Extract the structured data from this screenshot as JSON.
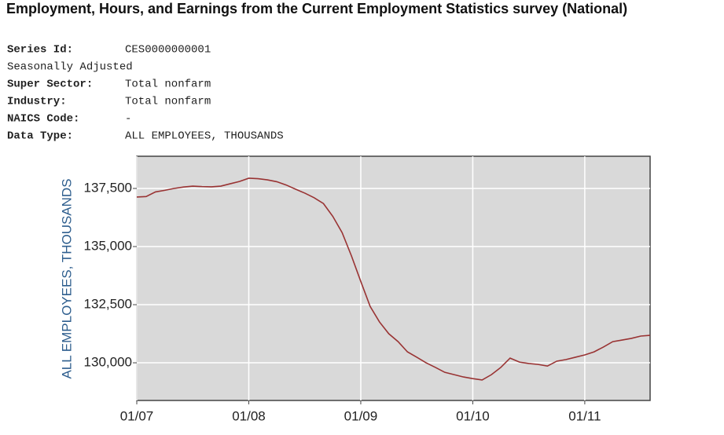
{
  "page_title": "Employment, Hours, and Earnings from the Current Employment Statistics survey (National)",
  "series_info": [
    {
      "label": "Series Id:",
      "value": "CES0000000001"
    },
    {
      "label": "Seasonally Adjusted"
    },
    {
      "label": "Super Sector:",
      "value": "Total nonfarm"
    },
    {
      "label": "Industry:",
      "value": "Total nonfarm"
    },
    {
      "label": "NAICS Code:",
      "value": "-"
    },
    {
      "label": "Data Type:",
      "value": "ALL EMPLOYEES, THOUSANDS"
    }
  ],
  "chart_data": {
    "type": "line",
    "y_label": "ALL EMPLOYEES, THOUSANDS",
    "x": [
      "01/07",
      "02/07",
      "03/07",
      "04/07",
      "05/07",
      "06/07",
      "07/07",
      "08/07",
      "09/07",
      "10/07",
      "11/07",
      "12/07",
      "01/08",
      "02/08",
      "03/08",
      "04/08",
      "05/08",
      "06/08",
      "07/08",
      "08/08",
      "09/08",
      "10/08",
      "11/08",
      "12/08",
      "01/09",
      "02/09",
      "03/09",
      "04/09",
      "05/09",
      "06/09",
      "07/09",
      "08/09",
      "09/09",
      "10/09",
      "11/09",
      "12/09",
      "01/10",
      "02/10",
      "03/10",
      "04/10",
      "05/10",
      "06/10",
      "07/10",
      "08/10",
      "09/10",
      "10/10",
      "11/10",
      "12/10",
      "01/11",
      "02/11",
      "03/11",
      "04/11",
      "05/11",
      "06/11",
      "07/11",
      "08/11"
    ],
    "series": [
      {
        "name": "Total nonfarm",
        "color": "#993333",
        "values": [
          137130,
          137150,
          137350,
          137420,
          137500,
          137560,
          137600,
          137580,
          137570,
          137600,
          137700,
          137800,
          137940,
          137920,
          137870,
          137790,
          137650,
          137470,
          137300,
          137100,
          136850,
          136300,
          135600,
          134600,
          133500,
          132430,
          131760,
          131250,
          130910,
          130470,
          130240,
          130000,
          129800,
          129590,
          129490,
          129390,
          129320,
          129260,
          129490,
          129800,
          130200,
          130030,
          129970,
          129930,
          129860,
          130070,
          130140,
          130240,
          130340,
          130470,
          130680,
          130910,
          130980,
          131050,
          131150,
          131180
        ]
      }
    ],
    "ylim": [
      128380,
      138885
    ],
    "yticks": [
      {
        "value": 130000,
        "label": "130,000"
      },
      {
        "value": 132500,
        "label": "132,500"
      },
      {
        "value": 135000,
        "label": "135,000"
      },
      {
        "value": 137500,
        "label": "137,500"
      }
    ],
    "xticks": [
      "01/07",
      "01/08",
      "01/09",
      "01/10",
      "01/11"
    ],
    "grid": true
  }
}
